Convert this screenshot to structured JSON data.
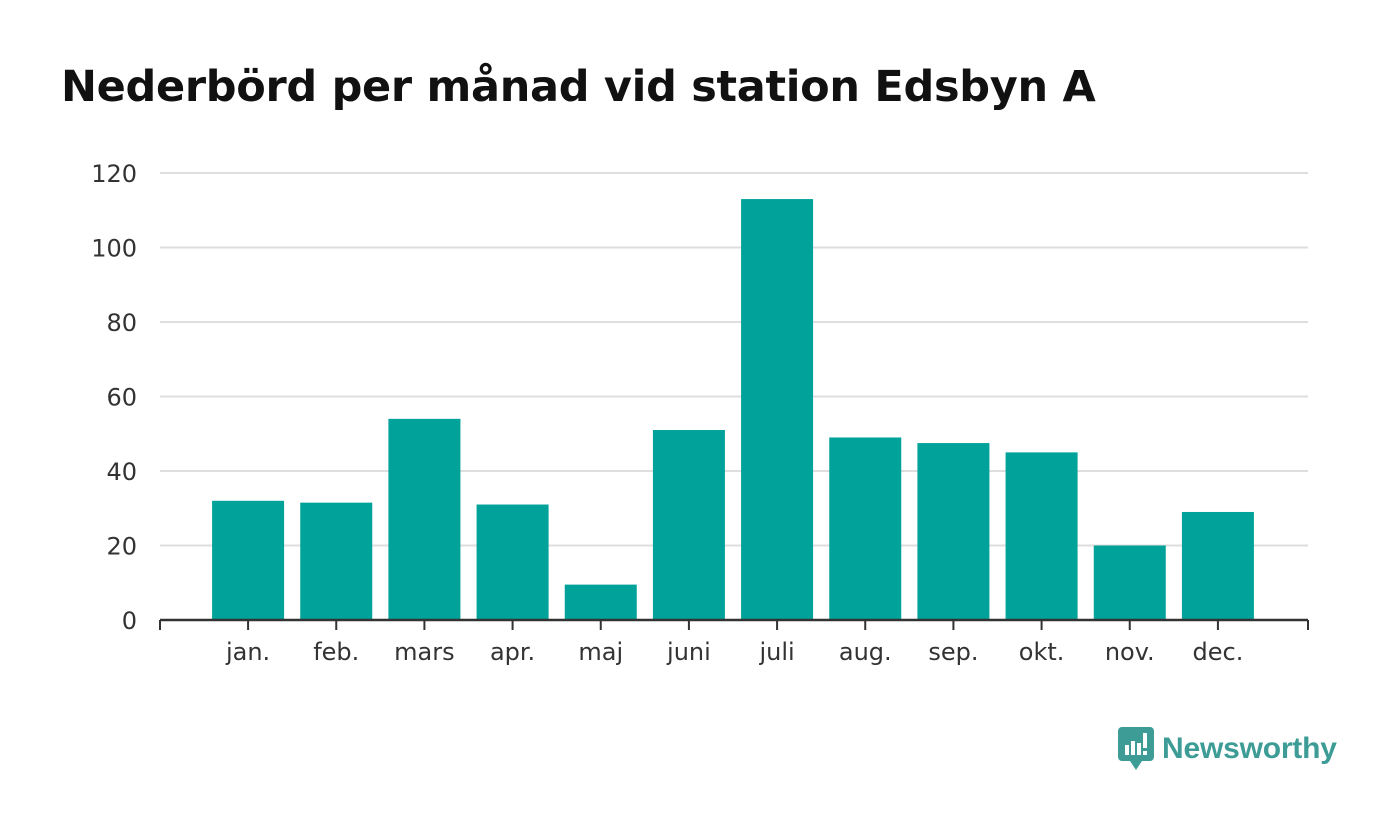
{
  "colors": {
    "bar": "#00a29a",
    "grid": "#dedede",
    "axis": "#333333",
    "text": "#333333",
    "brand": "#3e9c96"
  },
  "chart_data": {
    "type": "bar",
    "title": "Nederbörd per månad vid station Edsbyn A",
    "xlabel": "",
    "ylabel": "",
    "categories": [
      "jan.",
      "feb.",
      "mars",
      "apr.",
      "maj",
      "juni",
      "juli",
      "aug.",
      "sep.",
      "okt.",
      "nov.",
      "dec."
    ],
    "values": [
      32,
      31.5,
      54,
      31,
      9.5,
      51,
      113,
      49,
      47.5,
      45,
      20,
      29
    ],
    "ylim": [
      0,
      120
    ],
    "yticks": [
      0,
      20,
      40,
      60,
      80,
      100,
      120
    ],
    "grid": true,
    "legend": "none"
  },
  "brand": {
    "name": "Newsworthy",
    "icon": "newsworthy-logo-icon"
  }
}
